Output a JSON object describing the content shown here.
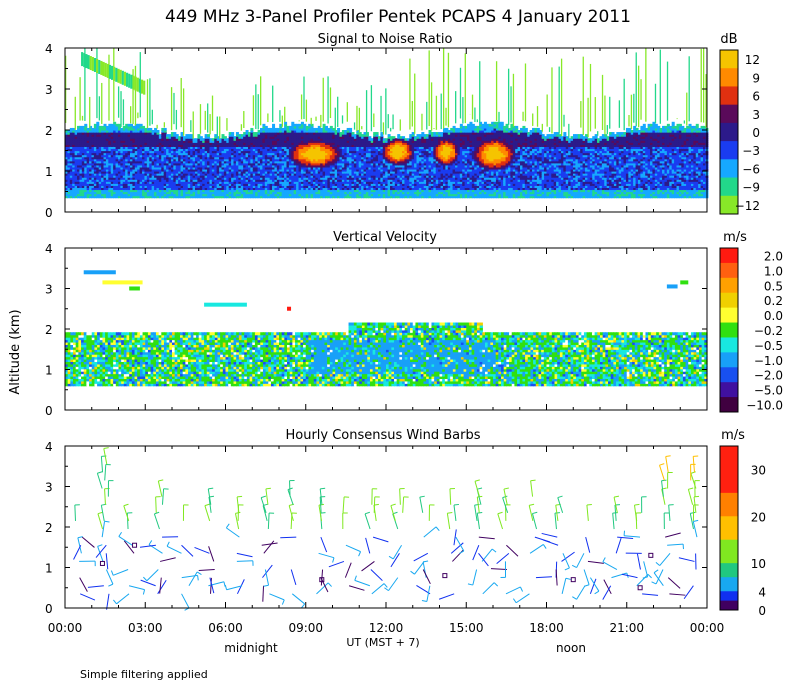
{
  "figure": {
    "title": "449 MHz 3-Panel Profiler Pentek PCAPS  4 January 2011",
    "y_axis_label": "Altitude (km)",
    "x_axis_label": "UT  (MST + 7)",
    "x_annotations": [
      "midnight",
      "noon"
    ],
    "footnote": "Simple filtering applied"
  },
  "chart_data": [
    {
      "type": "heatmap",
      "title": "Signal to Noise Ratio",
      "units": "dB",
      "x_range_hours": [
        0,
        24
      ],
      "x_ticks": [
        "00:00",
        "03:00",
        "06:00",
        "09:00",
        "12:00",
        "15:00",
        "18:00",
        "21:00",
        "00:00"
      ],
      "ylim": [
        0,
        4
      ],
      "y_ticks": [
        "0",
        "1",
        "2",
        "3",
        "4"
      ],
      "colorbar_labels": [
        "12",
        "9",
        "6",
        "3",
        "0",
        "−3",
        "−6",
        "−9",
        "−12"
      ],
      "colorbar_colors": [
        "#f5c400",
        "#ff8a00",
        "#e03010",
        "#5a0a5a",
        "#2c1a8a",
        "#1a3cf0",
        "#16a8ff",
        "#22d88a",
        "#88e828"
      ]
    },
    {
      "type": "heatmap",
      "title": "Vertical Velocity",
      "units": "m/s",
      "x_range_hours": [
        0,
        24
      ],
      "ylim": [
        0,
        4
      ],
      "y_ticks": [
        "0",
        "1",
        "2",
        "3",
        "4"
      ],
      "colorbar_labels": [
        "2.0",
        "1.0",
        "0.5",
        "0.2",
        "0.0",
        "−0.2",
        "−0.5",
        "−1.0",
        "−2.0",
        "−5.0",
        "−10.0"
      ],
      "colorbar_colors": [
        "#ff1a10",
        "#ff6010",
        "#ffa000",
        "#f0d000",
        "#ffff30",
        "#30e010",
        "#18e8e0",
        "#18a0f8",
        "#1850f0",
        "#4010a0",
        "#400040"
      ]
    },
    {
      "type": "scatter",
      "title": "Hourly Consensus Wind Barbs",
      "units": "m/s",
      "x_range_hours": [
        0,
        24
      ],
      "ylim": [
        0,
        4
      ],
      "y_ticks": [
        "0",
        "1",
        "2",
        "3",
        "4"
      ],
      "colorbar_labels": [
        "30",
        "20",
        "10",
        "4",
        "0"
      ],
      "colorbar_colors": [
        "#ff2010",
        "#ff8000",
        "#ffc000",
        "#80e820",
        "#20c880",
        "#18a8f0",
        "#1030f0",
        "#400060"
      ],
      "colorbar_bounds": [
        0,
        2,
        4,
        7,
        10,
        15,
        20,
        25,
        35
      ]
    }
  ]
}
